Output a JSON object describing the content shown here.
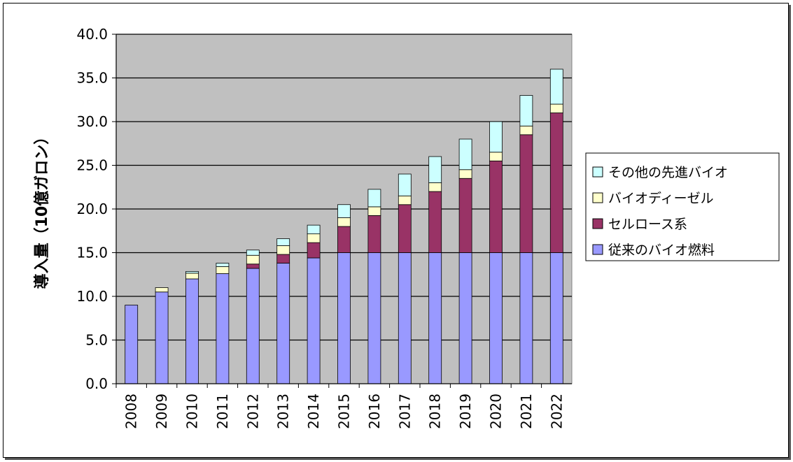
{
  "chart_data": {
    "type": "bar",
    "stacked": true,
    "title": "",
    "xlabel": "",
    "ylabel": "導入量（10億ガロン）",
    "ylim": [
      0,
      40
    ],
    "yticks": [
      "0.0",
      "5.0",
      "10.0",
      "15.0",
      "20.0",
      "25.0",
      "30.0",
      "35.0",
      "40.0"
    ],
    "grid": true,
    "legend_position": "right",
    "categories": [
      "2008",
      "2009",
      "2010",
      "2011",
      "2012",
      "2013",
      "2014",
      "2015",
      "2016",
      "2017",
      "2018",
      "2019",
      "2020",
      "2021",
      "2022"
    ],
    "series": [
      {
        "name": "従来のバイオ燃料",
        "color": "#9999ff",
        "values": [
          9.0,
          10.5,
          12.0,
          12.6,
          13.2,
          13.8,
          14.4,
          15.0,
          15.0,
          15.0,
          15.0,
          15.0,
          15.0,
          15.0,
          15.0
        ]
      },
      {
        "name": "セルロース系",
        "color": "#993366",
        "values": [
          0,
          0,
          0,
          0,
          0.5,
          1.0,
          1.75,
          3.0,
          4.25,
          5.5,
          7.0,
          8.5,
          10.5,
          13.5,
          16.0
        ]
      },
      {
        "name": "バイオディーゼル",
        "color": "#ffffcc",
        "values": [
          0,
          0.5,
          0.65,
          0.8,
          1.0,
          1.0,
          1.0,
          1.0,
          1.0,
          1.0,
          1.0,
          1.0,
          1.0,
          1.0,
          1.0
        ]
      },
      {
        "name": "その他の先進バイオ",
        "color": "#ccffff",
        "values": [
          0,
          0,
          0.2,
          0.4,
          0.6,
          0.8,
          1.0,
          1.5,
          2.0,
          2.5,
          3.0,
          3.5,
          3.5,
          3.5,
          4.0
        ]
      }
    ],
    "legend_order": [
      "その他の先進バイオ",
      "バイオディーゼル",
      "セルロース系",
      "従来のバイオ燃料"
    ],
    "plot_background": "#c0c0c0"
  }
}
